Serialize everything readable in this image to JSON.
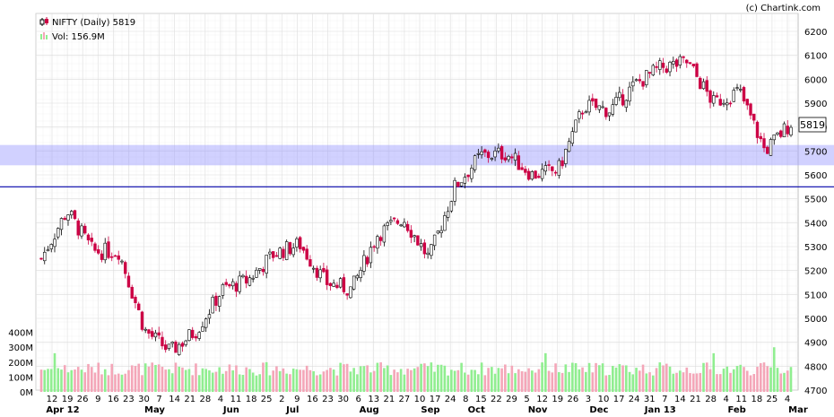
{
  "watermark": "(c) Chartink.com",
  "legend": {
    "price_label": "NIFTY (Daily) 5819",
    "volume_label": "Vol: 156.9M"
  },
  "last_price_tag": "5819",
  "colors": {
    "up_candle": "#000000",
    "down_candle": "#cc0044",
    "vol_up": "#90ee90",
    "vol_down": "#f4a6b8",
    "support_zone": "#9999ff",
    "support_line": "#0000aa",
    "grid": "#dcdcdc"
  },
  "chart_data": {
    "type": "candlestick",
    "title": "NIFTY (Daily) 5819",
    "price_axis": {
      "ticks": [
        4700,
        4800,
        4900,
        5000,
        5100,
        5200,
        5300,
        5400,
        5500,
        5600,
        5700,
        5800,
        5900,
        6000,
        6100,
        6200
      ],
      "range": [
        4700,
        6240
      ]
    },
    "volume_axis": {
      "ticks": [
        "0M",
        "100M",
        "200M",
        "300M",
        "400M"
      ],
      "range": [
        0,
        440
      ]
    },
    "support_zone": [
      5640,
      5725
    ],
    "support_line": 5550,
    "x_tick_labels": [
      "12",
      "19",
      "26",
      "9",
      "16",
      "23",
      "30",
      "7",
      "14",
      "21",
      "28",
      "4",
      "11",
      "18",
      "25",
      "2",
      "9",
      "16",
      "23",
      "30",
      "6",
      "13",
      "21",
      "27",
      "10",
      "17",
      "24",
      "8",
      "15",
      "22",
      "29",
      "5",
      "12",
      "19",
      "26",
      "3",
      "10",
      "17",
      "24",
      "31",
      "7",
      "14",
      "21",
      "28",
      "4",
      "11",
      "18",
      "25",
      "4"
    ],
    "month_labels": [
      "Apr 12",
      "May",
      "Jun",
      "Jul",
      "Aug",
      "Sep",
      "Oct",
      "Nov",
      "Dec",
      "Jan 13",
      "Feb",
      "Mar"
    ],
    "close_path": [
      {
        "month": "Apr 12",
        "close": 5250
      },
      {
        "month": "Apr 12",
        "close": 5450
      },
      {
        "month": "Apr 12",
        "close": 5280
      },
      {
        "month": "May",
        "close": 5280
      },
      {
        "month": "May",
        "close": 4950
      },
      {
        "month": "May",
        "close": 4860
      },
      {
        "month": "Jun",
        "close": 4950
      },
      {
        "month": "Jun",
        "close": 5120
      },
      {
        "month": "Jun",
        "close": 5160
      },
      {
        "month": "Jul",
        "close": 5270
      },
      {
        "month": "Jul",
        "close": 5310
      },
      {
        "month": "Jul",
        "close": 5150
      },
      {
        "month": "Aug",
        "close": 5120
      },
      {
        "month": "Aug",
        "close": 5350
      },
      {
        "month": "Aug",
        "close": 5420
      },
      {
        "month": "Sep",
        "close": 5250
      },
      {
        "month": "Sep",
        "close": 5550
      },
      {
        "month": "Oct",
        "close": 5680
      },
      {
        "month": "Oct",
        "close": 5690
      },
      {
        "month": "Nov",
        "close": 5600
      },
      {
        "month": "Nov",
        "close": 5620
      },
      {
        "month": "Dec",
        "close": 5890
      },
      {
        "month": "Dec",
        "close": 5870
      },
      {
        "month": "Jan 13",
        "close": 5980
      },
      {
        "month": "Jan 13",
        "close": 6050
      },
      {
        "month": "Jan 13",
        "close": 6070
      },
      {
        "month": "Feb",
        "close": 5900
      },
      {
        "month": "Feb",
        "close": 5950
      },
      {
        "month": "Feb",
        "close": 5700
      },
      {
        "month": "Mar",
        "close": 5819
      }
    ]
  }
}
